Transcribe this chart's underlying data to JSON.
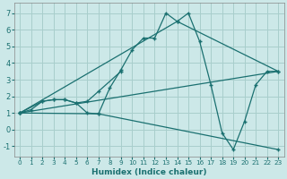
{
  "xlabel": "Humidex (Indice chaleur)",
  "bg_color": "#cce8e8",
  "grid_color": "#a8cecc",
  "line_color": "#1a7070",
  "xlim": [
    -0.5,
    23.5
  ],
  "ylim": [
    -1.6,
    7.6
  ],
  "yticks": [
    -1,
    0,
    1,
    2,
    3,
    4,
    5,
    6,
    7
  ],
  "xticks": [
    0,
    1,
    2,
    3,
    4,
    5,
    6,
    7,
    8,
    9,
    10,
    11,
    12,
    13,
    14,
    15,
    16,
    17,
    18,
    19,
    20,
    21,
    22,
    23
  ],
  "line1_x": [
    0,
    1,
    2,
    3,
    4,
    5,
    6,
    7,
    8,
    9,
    10,
    11,
    12,
    13,
    14,
    15,
    16,
    17,
    18,
    19,
    20,
    21,
    22,
    23
  ],
  "line1_y": [
    1.0,
    1.2,
    1.7,
    1.8,
    1.8,
    1.6,
    1.0,
    0.95,
    2.5,
    3.6,
    4.8,
    5.5,
    5.5,
    7.0,
    6.5,
    7.0,
    5.3,
    2.7,
    -0.2,
    -1.2,
    0.5,
    2.7,
    3.5,
    3.5
  ],
  "line2_x": [
    0,
    2,
    3,
    4,
    5,
    6,
    7,
    9
  ],
  "line2_y": [
    1.0,
    1.7,
    1.8,
    1.8,
    1.6,
    1.7,
    2.3,
    3.5
  ],
  "line3_x": [
    0,
    7,
    23
  ],
  "line3_y": [
    1.0,
    0.95,
    -1.2
  ],
  "line4_x": [
    0,
    23
  ],
  "line4_y": [
    1.0,
    3.5
  ],
  "line5_x": [
    0,
    14,
    23
  ],
  "line5_y": [
    1.0,
    6.5,
    3.5
  ]
}
